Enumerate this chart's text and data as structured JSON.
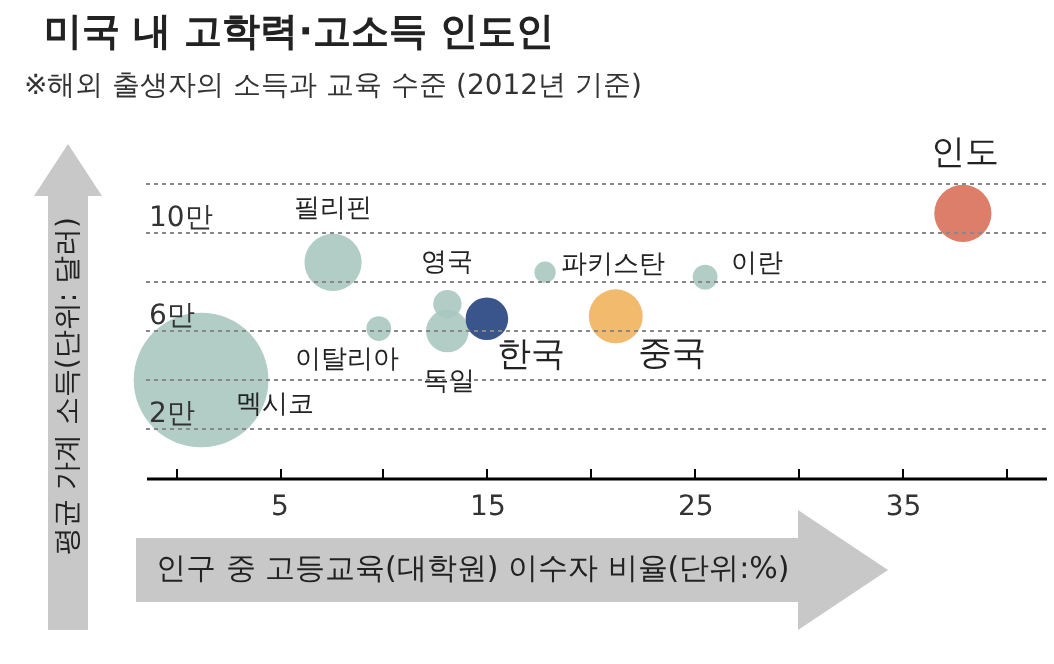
{
  "chart_data": {
    "type": "bubble",
    "title": "미국 내 고학력·고소득 인도인",
    "subtitle": "※해외 출생자의 소득과 교육 수준 (2012년 기준)",
    "xlabel": "인구 중 고등교육(대학원) 이수자 비율(단위:%)",
    "ylabel": "평균 가계 소득(단위: 달러)",
    "xlim": [
      -1.4,
      41.9
    ],
    "xticks": [
      {
        "value": 0,
        "label": null
      },
      5,
      {
        "value": 10,
        "label": null
      },
      15,
      {
        "value": 20,
        "label": null
      },
      25,
      {
        "value": 30,
        "label": null
      },
      35,
      {
        "value": 40,
        "label": null
      }
    ],
    "ylim": [
      0,
      12
    ],
    "yticks": [
      {
        "value": 2,
        "label": "2만"
      },
      {
        "value": 4,
        "label": null
      },
      {
        "value": 6,
        "label": "6만"
      },
      {
        "value": 8,
        "label": null
      },
      {
        "value": 10,
        "label": "10만"
      },
      {
        "value": 12,
        "label": null
      }
    ],
    "grid": "y",
    "legend": false,
    "series": [
      {
        "name": "멕시코",
        "color": "#a9c8c0",
        "x": [
          1.25
        ],
        "values": [
          4
        ],
        "sizes": [
          1
        ]
      },
      {
        "name": "필리핀",
        "color": "#a9c8c0",
        "x": [
          7.6
        ],
        "values": [
          8.8
        ],
        "sizes": [
          0.18
        ]
      },
      {
        "name": "이탈리아",
        "color": "#a9c8c0",
        "x": [
          9.8
        ],
        "values": [
          6.1
        ],
        "sizes": [
          0.034
        ]
      },
      {
        "name": "독일",
        "color": "#a9c8c0",
        "x": [
          13.1
        ],
        "values": [
          6
        ],
        "sizes": [
          0.1
        ]
      },
      {
        "name": "영국",
        "color": "#a9c8c0",
        "x": [
          13.1
        ],
        "values": [
          7.1
        ],
        "sizes": [
          0.044
        ]
      },
      {
        "name": "한국",
        "color": "#24437f",
        "x": [
          15
        ],
        "values": [
          6.5
        ],
        "sizes": [
          0.1
        ]
      },
      {
        "name": "파키스탄",
        "color": "#a9c8c0",
        "x": [
          17.8
        ],
        "values": [
          8.4
        ],
        "sizes": [
          0.025
        ]
      },
      {
        "name": "중국",
        "color": "#f0b25c",
        "x": [
          21.2
        ],
        "values": [
          6.6
        ],
        "sizes": [
          0.16
        ]
      },
      {
        "name": "이란",
        "color": "#a9c8c0",
        "x": [
          25.5
        ],
        "values": [
          8.2
        ],
        "sizes": [
          0.034
        ]
      },
      {
        "name": "인도",
        "color": "#d9705a",
        "x": [
          37.9
        ],
        "values": [
          10.8
        ],
        "sizes": [
          0.18
        ]
      }
    ]
  }
}
